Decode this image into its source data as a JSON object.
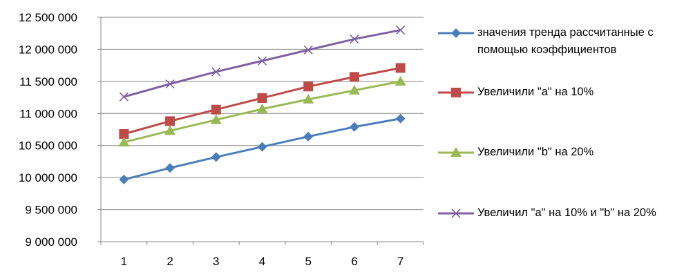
{
  "chart_data": {
    "type": "line",
    "x": [
      1,
      2,
      3,
      4,
      5,
      6,
      7
    ],
    "ylim": [
      9000000,
      12500000
    ],
    "y_ticks": [
      "9 000 000",
      "9 500 000",
      "10 000 000",
      "10 500 000",
      "11 000 000",
      "11 500 000",
      "12 000 000",
      "12 500 000"
    ],
    "x_ticks": [
      "1",
      "2",
      "3",
      "4",
      "5",
      "6",
      "7"
    ],
    "grid": "horizontal",
    "legend_position": "right",
    "series": [
      {
        "name": "значения тренда рассчитанные с помощью коэффициентов",
        "color": "#4A7EBB",
        "marker": "diamond",
        "values": [
          9970000,
          10150000,
          10320000,
          10480000,
          10640000,
          10790000,
          10920000
        ]
      },
      {
        "name": "Увеличили \"а\" на 10%",
        "color": "#BE4B48",
        "marker": "square",
        "values": [
          10680000,
          10880000,
          11060000,
          11240000,
          11420000,
          11570000,
          11710000
        ]
      },
      {
        "name": "Увеличили \"b\" на 20%",
        "color": "#98B954",
        "marker": "triangle",
        "values": [
          10550000,
          10730000,
          10900000,
          11070000,
          11220000,
          11360000,
          11500000
        ]
      },
      {
        "name": "Увеличил \"а\" на 10%  и \"b\" на 20%",
        "color": "#7D60A0",
        "marker": "x",
        "values": [
          11260000,
          11460000,
          11650000,
          11820000,
          11990000,
          12160000,
          12300000
        ]
      }
    ]
  }
}
